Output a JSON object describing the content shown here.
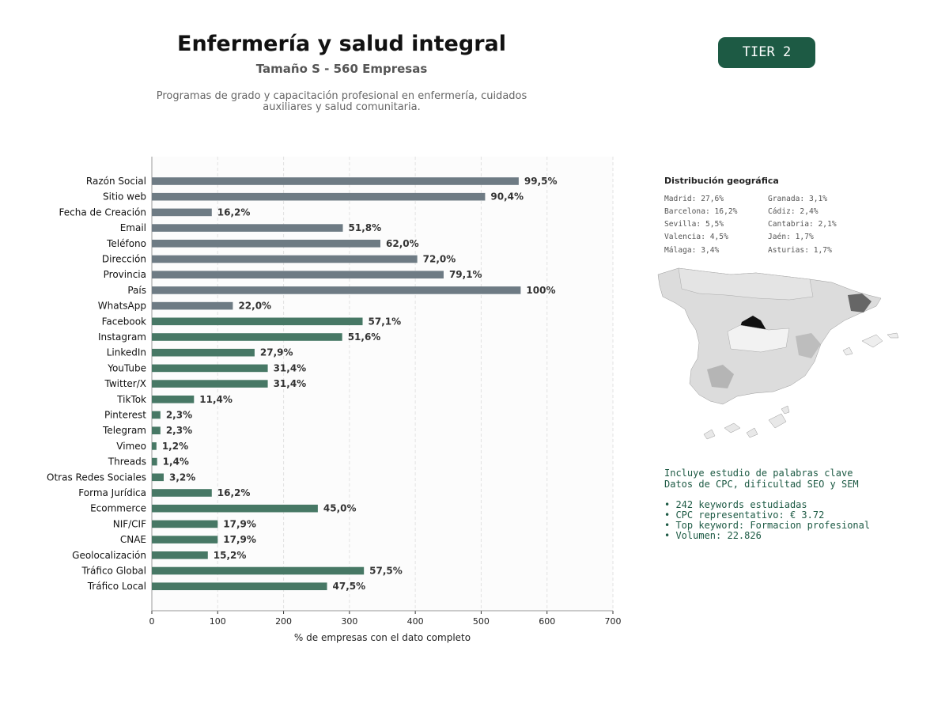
{
  "header": {
    "title": "Enfermería y salud integral",
    "subtitle": "Tamaño S - 560 Empresas",
    "description_line1": "Programas de grado y capacitación profesional en enfermería, cuidados",
    "description_line2": "auxiliares y salud comunitaria.",
    "tier": "TIER 2"
  },
  "chart_data": {
    "type": "bar",
    "orientation": "horizontal",
    "xlabel": "% de empresas con el dato completo",
    "xlim": [
      0,
      700
    ],
    "xticks": [
      0,
      100,
      200,
      300,
      400,
      500,
      600,
      700
    ],
    "grid": "vertical dashed",
    "colors": {
      "contact": "#6e7b84",
      "social_other": "#477865"
    },
    "categories": [
      "Razón Social",
      "Sitio web",
      "Fecha de Creación",
      "Email",
      "Teléfono",
      "Dirección",
      "Provincia",
      "País",
      "WhatsApp",
      "Facebook",
      "Instagram",
      "LinkedIn",
      "YouTube",
      "Twitter/X",
      "TikTok",
      "Pinterest",
      "Telegram",
      "Vimeo",
      "Threads",
      "Otras Redes Sociales",
      "Forma Jurídica",
      "Ecommerce",
      "NIF/CIF",
      "CNAE",
      "Geolocalización",
      "Tráfico Global",
      "Tráfico Local"
    ],
    "values": [
      557,
      506,
      91,
      290,
      347,
      403,
      443,
      560,
      123,
      320,
      289,
      156,
      176,
      176,
      64,
      13,
      13,
      7,
      8,
      18,
      91,
      252,
      100,
      100,
      85,
      322,
      266
    ],
    "labels": [
      "99,5%",
      "90,4%",
      "16,2%",
      "51,8%",
      "62,0%",
      "72,0%",
      "79,1%",
      "100%",
      "22,0%",
      "57,1%",
      "51,6%",
      "27,9%",
      "31,4%",
      "31,4%",
      "11,4%",
      "2,3%",
      "2,3%",
      "1,2%",
      "1,4%",
      "3,2%",
      "16,2%",
      "45,0%",
      "17,9%",
      "17,9%",
      "15,2%",
      "57,5%",
      "47,5%"
    ],
    "color_groups": [
      "contact",
      "contact",
      "contact",
      "contact",
      "contact",
      "contact",
      "contact",
      "contact",
      "contact",
      "social_other",
      "social_other",
      "social_other",
      "social_other",
      "social_other",
      "social_other",
      "social_other",
      "social_other",
      "social_other",
      "social_other",
      "social_other",
      "social_other",
      "social_other",
      "social_other",
      "social_other",
      "social_other",
      "social_other",
      "social_other"
    ]
  },
  "geo": {
    "title": "Distribución geográfica",
    "col1": [
      "Madrid: 27,6%",
      "Barcelona: 16,2%",
      "Sevilla: 5,5%",
      "Valencia: 4,5%",
      "Málaga: 3,4%"
    ],
    "col2": [
      "Granada: 3,1%",
      "Cádiz: 2,4%",
      "Cantabria: 2,1%",
      "Jaén: 1,7%",
      "Asturias: 1,7%"
    ]
  },
  "keywords": {
    "line1": "Incluye estudio de palabras clave",
    "line2": "Datos de CPC, dificultad SEO y SEM",
    "bullets": [
      "• 242 keywords estudiadas",
      "• CPC representativo: € 3.72",
      "• Top keyword: Formacion profesional",
      "• Volumen: 22.826"
    ]
  }
}
